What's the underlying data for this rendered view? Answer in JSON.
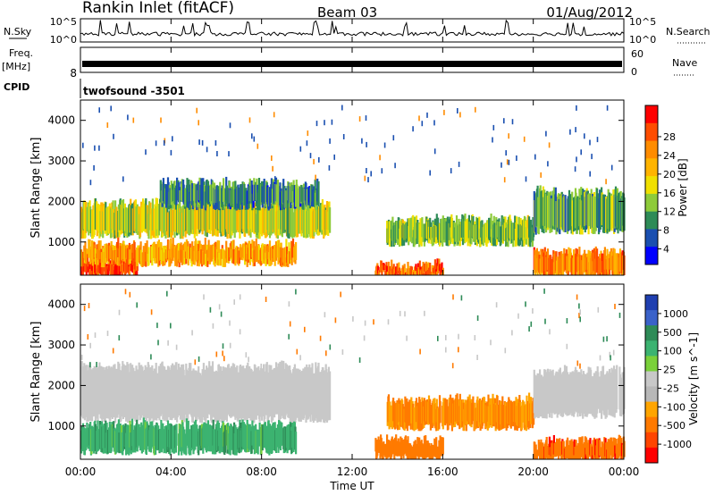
{
  "header": {
    "title": "Rankin Inlet (fitACF)",
    "beam": "Beam 03",
    "date": "01/Aug/2012"
  },
  "strips": {
    "nsky_label": "N.Sky",
    "nsky_ticks": [
      "10^5",
      "10^0"
    ],
    "nsearch_label": "N.Search",
    "nsearch_ticks": [
      "10^5",
      "10^0"
    ],
    "freq_label": "Freq.",
    "freq_unit": "[MHz]",
    "freq_ticks": [
      "8"
    ],
    "nave_label": "Nave",
    "nave_ticks": [
      "60",
      "0"
    ],
    "cpid_label": "CPID",
    "cpid_value": "twofsound  -3501"
  },
  "chart_data": [
    {
      "type": "heatmap",
      "panel": "power",
      "ylabel": "Slant Range [km]",
      "ylim": [
        180,
        4500
      ],
      "yticks": [
        1000,
        2000,
        3000,
        4000
      ],
      "xlim": [
        0,
        24
      ],
      "colorbar": {
        "label": "Power [dB]",
        "ticks": [
          "28",
          "24",
          "20",
          "16",
          "12",
          "8",
          "4"
        ],
        "colors": [
          "#ff0000",
          "#ff4d00",
          "#ff8c00",
          "#ffb400",
          "#f0e000",
          "#8ecb3a",
          "#2e8b57",
          "#1a4fb0",
          "#0000ff"
        ]
      },
      "bands": [
        {
          "x": [
            0,
            2.5
          ],
          "y": [
            200,
            500
          ],
          "level": 26
        },
        {
          "x": [
            0,
            9.5
          ],
          "y": [
            500,
            900
          ],
          "level": 20
        },
        {
          "x": [
            0,
            11
          ],
          "y": [
            1200,
            1900
          ],
          "level": 14
        },
        {
          "x": [
            3.5,
            10.5
          ],
          "y": [
            1900,
            2400
          ],
          "level": 8
        },
        {
          "x": [
            13.5,
            20
          ],
          "y": [
            1000,
            1500
          ],
          "level": 12
        },
        {
          "x": [
            13,
            16
          ],
          "y": [
            200,
            400
          ],
          "level": 24
        },
        {
          "x": [
            20,
            24
          ],
          "y": [
            200,
            700
          ],
          "level": 22
        },
        {
          "x": [
            20,
            24
          ],
          "y": [
            1300,
            2200
          ],
          "level": 10
        }
      ]
    },
    {
      "type": "heatmap",
      "panel": "velocity",
      "ylabel": "Slant Range [km]",
      "ylim": [
        180,
        4500
      ],
      "yticks": [
        1000,
        2000,
        3000,
        4000
      ],
      "xlim": [
        0,
        24
      ],
      "colorbar": {
        "label": "Velocity [m s^-1]",
        "ticks": [
          "1000",
          "500",
          "100",
          "25",
          "-25",
          "-100",
          "-500",
          "-1000"
        ],
        "colors": [
          "#1f3fb0",
          "#3a62c9",
          "#2e8b57",
          "#3cb371",
          "#7ad03a",
          "#c8c8c8",
          "#b8b8b8",
          "#ffa500",
          "#ff7a00",
          "#ff4500",
          "#ff0000"
        ]
      },
      "bands": [
        {
          "x": [
            0,
            11
          ],
          "y": [
            1200,
            2400
          ],
          "level": "ground"
        },
        {
          "x": [
            0,
            9.5
          ],
          "y": [
            400,
            1000
          ],
          "level": 200
        },
        {
          "x": [
            13.5,
            20
          ],
          "y": [
            1000,
            1600
          ],
          "level": -300
        },
        {
          "x": [
            13,
            16
          ],
          "y": [
            250,
            600
          ],
          "level": -500
        },
        {
          "x": [
            20,
            24
          ],
          "y": [
            200,
            600
          ],
          "level": -600
        },
        {
          "x": [
            20,
            24
          ],
          "y": [
            1300,
            2300
          ],
          "level": "ground"
        }
      ]
    }
  ],
  "xaxis": {
    "label": "Time UT",
    "ticks": [
      "00:00",
      "04:00",
      "08:00",
      "12:00",
      "16:00",
      "20:00",
      "00:00"
    ]
  }
}
